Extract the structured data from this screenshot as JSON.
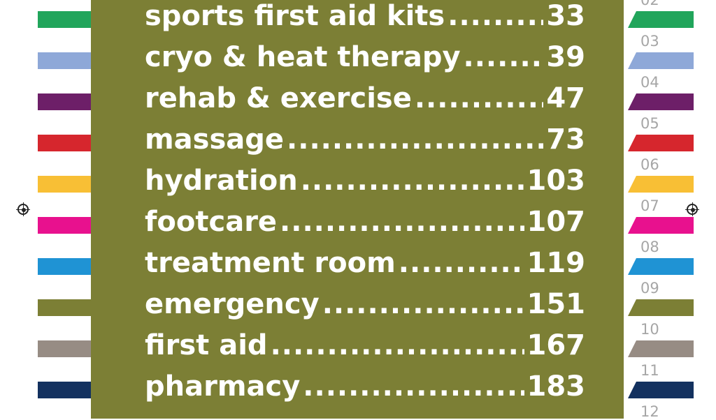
{
  "toc": [
    {
      "label": "sports first aid kits",
      "page": "33",
      "tab_number": "02",
      "color": "#21a55b"
    },
    {
      "label": "cryo & heat therapy",
      "page": "39",
      "tab_number": "03",
      "color": "#8ea8d8"
    },
    {
      "label": "rehab & exercise",
      "page": "47",
      "tab_number": "04",
      "color": "#6d1f68"
    },
    {
      "label": "massage",
      "page": "73",
      "tab_number": "05",
      "color": "#d6262d"
    },
    {
      "label": "hydration",
      "page": "103",
      "tab_number": "06",
      "color": "#f8bf35"
    },
    {
      "label": "footcare",
      "page": "107",
      "tab_number": "07",
      "color": "#e8118e"
    },
    {
      "label": "treatment room",
      "page": "119",
      "tab_number": "08",
      "color": "#1f93d4"
    },
    {
      "label": "emergency",
      "page": "151",
      "tab_number": "09",
      "color": "#7c7f35"
    },
    {
      "label": "first aid",
      "page": "167",
      "tab_number": "10",
      "color": "#978c84"
    },
    {
      "label": "pharmacy",
      "page": "183",
      "tab_number": "11",
      "color": "#13315f"
    }
  ],
  "extra_tab_number": "12"
}
